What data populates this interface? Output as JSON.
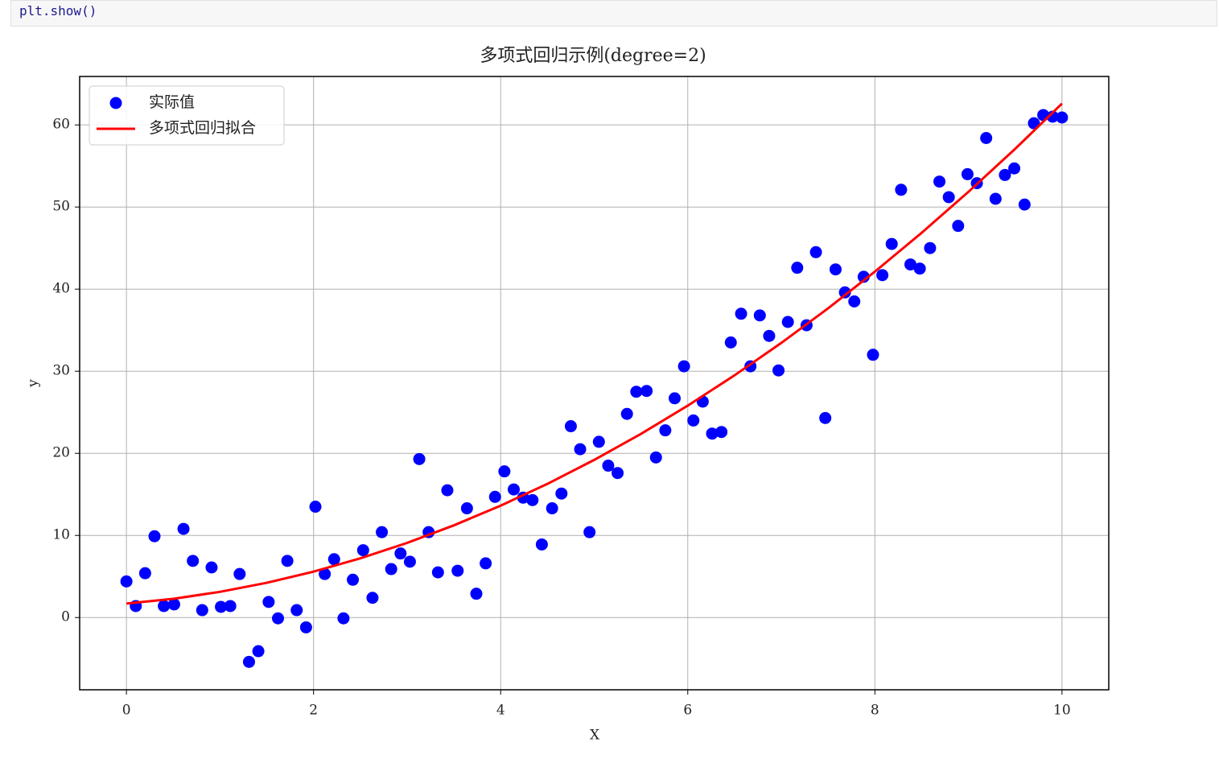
{
  "code": "plt.show()",
  "chart_data": {
    "type": "scatter",
    "title": "多项式回归示例(degree=2)",
    "xlabel": "X",
    "ylabel": "y",
    "xlim": [
      -0.5,
      10.5
    ],
    "ylim": [
      -8.8,
      65.9
    ],
    "xticks": [
      0,
      2,
      4,
      6,
      8,
      10
    ],
    "yticks": [
      0,
      10,
      20,
      30,
      40,
      50,
      60
    ],
    "grid": true,
    "legend": "upper left",
    "series": [
      {
        "name": "实际值",
        "type": "scatter",
        "color": "#0000ff",
        "x": [
          0,
          0.1,
          0.2,
          0.3,
          0.4,
          0.51,
          0.61,
          0.71,
          0.81,
          0.91,
          1.01,
          1.11,
          1.21,
          1.31,
          1.41,
          1.52,
          1.62,
          1.72,
          1.82,
          1.92,
          2.02,
          2.12,
          2.22,
          2.32,
          2.42,
          2.53,
          2.63,
          2.73,
          2.83,
          2.93,
          3.03,
          3.13,
          3.23,
          3.33,
          3.43,
          3.54,
          3.64,
          3.74,
          3.84,
          3.94,
          4.04,
          4.14,
          4.24,
          4.34,
          4.44,
          4.55,
          4.65,
          4.75,
          4.85,
          4.95,
          5.05,
          5.15,
          5.25,
          5.35,
          5.45,
          5.56,
          5.66,
          5.76,
          5.86,
          5.96,
          6.06,
          6.16,
          6.26,
          6.36,
          6.46,
          6.57,
          6.67,
          6.77,
          6.87,
          6.97,
          7.07,
          7.17,
          7.27,
          7.37,
          7.47,
          7.58,
          7.68,
          7.78,
          7.88,
          7.98,
          8.08,
          8.18,
          8.28,
          8.38,
          8.48,
          8.59,
          8.69,
          8.79,
          8.89,
          8.99,
          9.09,
          9.19,
          9.29,
          9.39,
          9.49,
          9.6,
          9.7,
          9.8,
          9.9,
          10
        ],
        "values": [
          4.4,
          1.4,
          5.4,
          9.9,
          1.4,
          1.6,
          10.8,
          6.9,
          0.9,
          6.1,
          1.3,
          1.4,
          5.3,
          -5.4,
          -4.1,
          1.9,
          -0.1,
          6.9,
          0.9,
          -1.2,
          13.5,
          5.3,
          7.1,
          -0.1,
          4.6,
          8.2,
          2.4,
          10.4,
          5.9,
          7.8,
          6.8,
          19.3,
          10.4,
          5.5,
          15.5,
          5.7,
          13.3,
          2.9,
          6.6,
          14.7,
          17.8,
          15.6,
          14.6,
          14.3,
          8.9,
          13.3,
          15.1,
          23.3,
          20.5,
          10.4,
          21.4,
          18.5,
          17.6,
          24.8,
          27.5,
          27.6,
          19.5,
          22.8,
          26.7,
          30.6,
          24.0,
          26.3,
          22.4,
          22.6,
          33.5,
          37.0,
          30.6,
          36.8,
          34.3,
          30.1,
          36.0,
          42.6,
          35.6,
          44.5,
          24.3,
          42.4,
          39.6,
          38.5,
          41.5,
          32.0,
          41.7,
          45.5,
          52.1,
          43.0,
          42.5,
          45.0,
          53.1,
          51.2,
          47.7,
          54.0,
          52.9,
          58.4,
          51.0,
          53.9,
          54.7,
          50.3,
          60.2,
          61.2,
          61.0,
          60.9
        ]
      },
      {
        "name": "多项式回归拟合",
        "type": "line",
        "color": "#ff0000",
        "x": [
          0,
          0.5,
          1,
          1.5,
          2,
          2.5,
          3,
          3.5,
          4,
          4.5,
          5,
          5.5,
          6,
          6.5,
          7,
          7.5,
          8,
          8.5,
          9,
          9.5,
          10
        ],
        "values": [
          1.7,
          2.28,
          3.13,
          4.23,
          5.59,
          7.21,
          9.09,
          11.23,
          13.63,
          16.28,
          19.2,
          22.37,
          25.81,
          29.5,
          33.45,
          37.66,
          42.13,
          46.86,
          51.85,
          57.09,
          62.6
        ]
      }
    ]
  }
}
